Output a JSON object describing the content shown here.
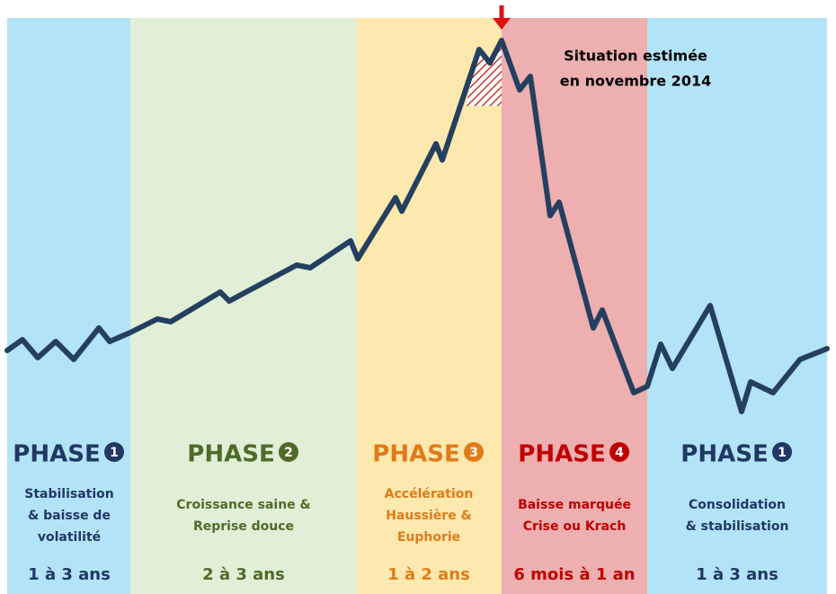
{
  "annotation": [
    "Situation estimée",
    "en novembre 2014"
  ],
  "phases": [
    {
      "title": "PHASE",
      "number": "1",
      "description": [
        "Stabilisation",
        "& baisse de",
        "volatilité"
      ],
      "duration": "1 à 3 ans"
    },
    {
      "title": "PHASE",
      "number": "2",
      "description": [
        "Croissance saine &",
        "Reprise douce"
      ],
      "duration": "2 à 3 ans"
    },
    {
      "title": "PHASE",
      "number": "3",
      "description": [
        "Accélération",
        "Haussière &",
        "Euphorie"
      ],
      "duration": "1 à 2 ans"
    },
    {
      "title": "PHASE",
      "number": "4",
      "description": [
        "Baisse marquée",
        "Crise ou Krach"
      ],
      "duration": "6 mois à 1 an"
    },
    {
      "title": "PHASE",
      "number": "1",
      "description": [
        "Consolidation",
        "& stabilisation"
      ],
      "duration": "1 à 3 ans"
    }
  ]
}
